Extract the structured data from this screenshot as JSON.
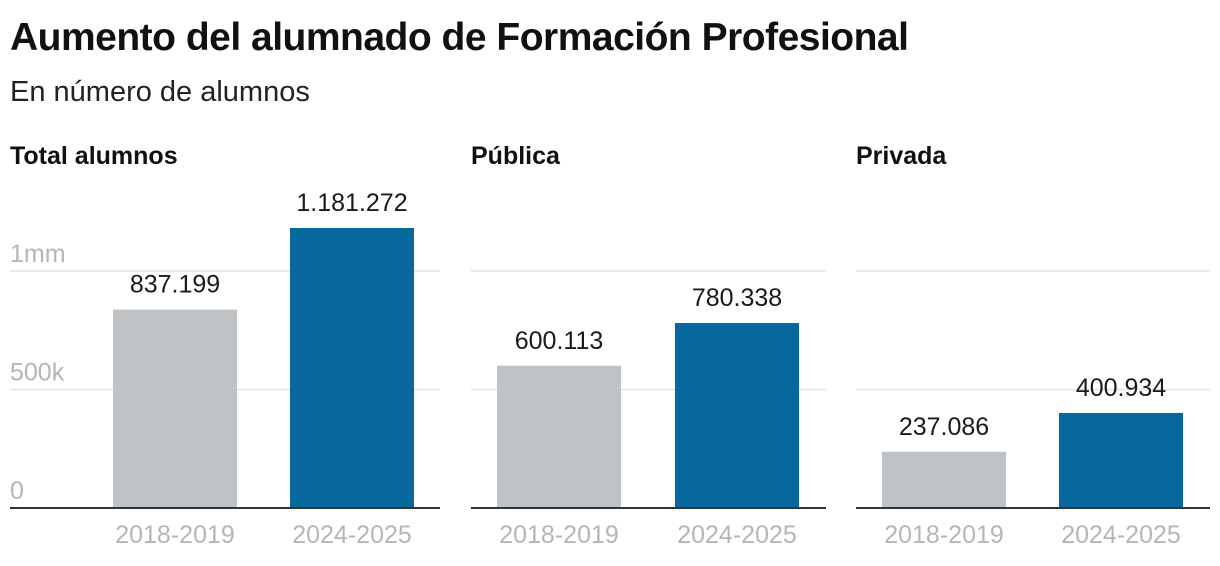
{
  "title": "Aumento del alumnado de Formación Profesional",
  "subtitle": "En número de alumnos",
  "colors": {
    "first_period": "#bfc3c6",
    "second_period": "#08679c"
  },
  "chart_data": [
    {
      "type": "bar",
      "title": "Total alumnos",
      "categories": [
        "2018-2019",
        "2024-2025"
      ],
      "values": [
        837199,
        1181272
      ],
      "value_labels": [
        "837.199",
        "1.181.272"
      ],
      "ylim": [
        0,
        1181272
      ],
      "yticks": [
        0,
        500000,
        1000000
      ],
      "ytick_labels": [
        "0",
        "500k",
        "1mm"
      ],
      "grid": true
    },
    {
      "type": "bar",
      "title": "Pública",
      "categories": [
        "2018-2019",
        "2024-2025"
      ],
      "values": [
        600113,
        780338
      ],
      "value_labels": [
        "600.113",
        "780.338"
      ],
      "ylim": [
        0,
        1181272
      ],
      "yticks": [
        0,
        500000,
        1000000
      ],
      "grid": true
    },
    {
      "type": "bar",
      "title": "Privada",
      "categories": [
        "2018-2019",
        "2024-2025"
      ],
      "values": [
        237086,
        400934
      ],
      "value_labels": [
        "237.086",
        "400.934"
      ],
      "ylim": [
        0,
        1181272
      ],
      "yticks": [
        0,
        500000,
        1000000
      ],
      "grid": true
    }
  ]
}
